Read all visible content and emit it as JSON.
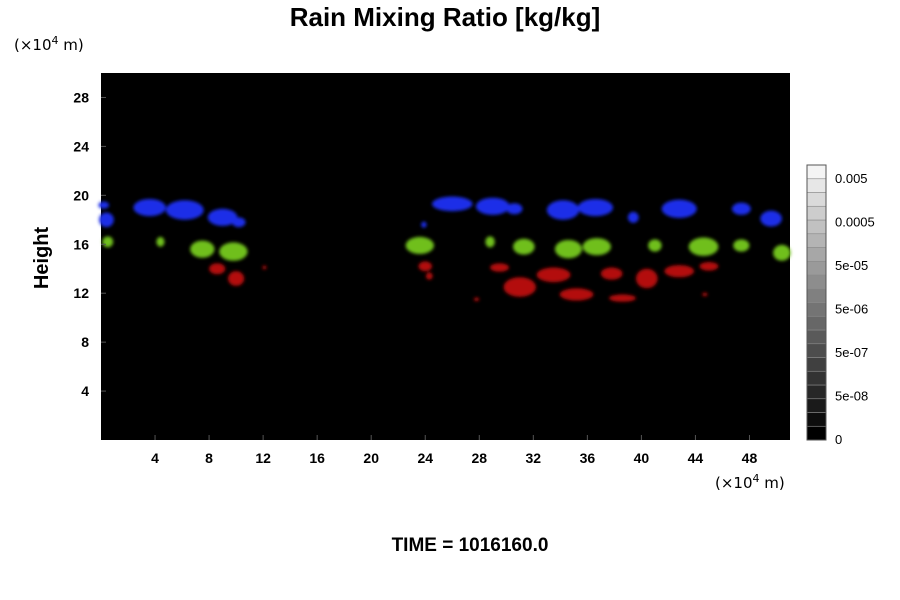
{
  "chart_data": {
    "type": "heatmap",
    "title": "Rain Mixing Ratio [kg/kg]",
    "xlabel": "",
    "ylabel": "Height",
    "x_unit_base": "(×10",
    "x_unit_exp": "4",
    "x_unit_suffix": " m)",
    "y_unit_base": "(×10",
    "y_unit_exp": "4",
    "y_unit_suffix": " m)",
    "xlim": [
      0,
      51
    ],
    "ylim": [
      0,
      30
    ],
    "x_ticks": [
      4,
      8,
      12,
      16,
      20,
      24,
      28,
      32,
      36,
      40,
      44,
      48
    ],
    "y_ticks": [
      4,
      8,
      12,
      16,
      20,
      24,
      28
    ],
    "background_color": "#000000",
    "colorbar": {
      "labels": [
        "0",
        "5e-08",
        "5e-07",
        "5e-06",
        "5e-05",
        "0.0005",
        "0.005"
      ],
      "levels": 20,
      "min_color": "#000000",
      "max_color": "#f4f4f4"
    },
    "layers": [
      {
        "color": "#1a2ee8",
        "blobs": [
          {
            "x": 0.4,
            "y": 18.0,
            "w": 1.1,
            "h": 1.2
          },
          {
            "x": 0.2,
            "y": 19.2,
            "w": 0.8,
            "h": 0.6
          },
          {
            "x": 3.6,
            "y": 19.0,
            "w": 2.4,
            "h": 1.4
          },
          {
            "x": 6.2,
            "y": 18.8,
            "w": 2.8,
            "h": 1.6
          },
          {
            "x": 9.0,
            "y": 18.2,
            "w": 2.2,
            "h": 1.4
          },
          {
            "x": 10.2,
            "y": 17.8,
            "w": 1.0,
            "h": 0.8
          },
          {
            "x": 23.9,
            "y": 17.6,
            "w": 0.4,
            "h": 0.5
          },
          {
            "x": 26.0,
            "y": 19.3,
            "w": 3.0,
            "h": 1.2
          },
          {
            "x": 29.0,
            "y": 19.1,
            "w": 2.5,
            "h": 1.4
          },
          {
            "x": 30.6,
            "y": 18.9,
            "w": 1.2,
            "h": 0.9
          },
          {
            "x": 34.2,
            "y": 18.8,
            "w": 2.4,
            "h": 1.6
          },
          {
            "x": 36.6,
            "y": 19.0,
            "w": 2.6,
            "h": 1.4
          },
          {
            "x": 39.4,
            "y": 18.2,
            "w": 0.8,
            "h": 0.9
          },
          {
            "x": 42.8,
            "y": 18.9,
            "w": 2.6,
            "h": 1.5
          },
          {
            "x": 47.4,
            "y": 18.9,
            "w": 1.4,
            "h": 1.0
          },
          {
            "x": 49.6,
            "y": 18.1,
            "w": 1.6,
            "h": 1.3
          }
        ]
      },
      {
        "color": "#6fbf1c",
        "blobs": [
          {
            "x": 0.5,
            "y": 16.2,
            "w": 0.8,
            "h": 0.9
          },
          {
            "x": 4.4,
            "y": 16.2,
            "w": 0.6,
            "h": 0.8
          },
          {
            "x": 7.5,
            "y": 15.6,
            "w": 1.8,
            "h": 1.4
          },
          {
            "x": 9.8,
            "y": 15.4,
            "w": 2.1,
            "h": 1.5
          },
          {
            "x": 23.6,
            "y": 15.9,
            "w": 2.1,
            "h": 1.4
          },
          {
            "x": 28.8,
            "y": 16.2,
            "w": 0.7,
            "h": 0.9
          },
          {
            "x": 31.3,
            "y": 15.8,
            "w": 1.6,
            "h": 1.3
          },
          {
            "x": 34.6,
            "y": 15.6,
            "w": 2.0,
            "h": 1.5
          },
          {
            "x": 36.7,
            "y": 15.8,
            "w": 2.1,
            "h": 1.4
          },
          {
            "x": 41.0,
            "y": 15.9,
            "w": 1.0,
            "h": 1.0
          },
          {
            "x": 44.6,
            "y": 15.8,
            "w": 2.2,
            "h": 1.5
          },
          {
            "x": 47.4,
            "y": 15.9,
            "w": 1.2,
            "h": 1.0
          },
          {
            "x": 50.4,
            "y": 15.3,
            "w": 1.3,
            "h": 1.3
          }
        ]
      },
      {
        "color": "#b30c0c",
        "blobs": [
          {
            "x": 8.6,
            "y": 14.0,
            "w": 1.2,
            "h": 0.9
          },
          {
            "x": 10.0,
            "y": 13.2,
            "w": 1.2,
            "h": 1.2
          },
          {
            "x": 12.1,
            "y": 14.1,
            "w": 0.3,
            "h": 0.3
          },
          {
            "x": 24.0,
            "y": 14.2,
            "w": 1.0,
            "h": 0.8
          },
          {
            "x": 24.3,
            "y": 13.4,
            "w": 0.5,
            "h": 0.6
          },
          {
            "x": 27.8,
            "y": 11.5,
            "w": 0.4,
            "h": 0.3
          },
          {
            "x": 29.5,
            "y": 14.1,
            "w": 1.4,
            "h": 0.7
          },
          {
            "x": 31.0,
            "y": 12.5,
            "w": 2.4,
            "h": 1.6
          },
          {
            "x": 33.5,
            "y": 13.5,
            "w": 2.5,
            "h": 1.2
          },
          {
            "x": 35.2,
            "y": 11.9,
            "w": 2.5,
            "h": 1.0
          },
          {
            "x": 37.8,
            "y": 13.6,
            "w": 1.6,
            "h": 1.0
          },
          {
            "x": 38.6,
            "y": 11.6,
            "w": 2.0,
            "h": 0.6
          },
          {
            "x": 40.4,
            "y": 13.2,
            "w": 1.6,
            "h": 1.6
          },
          {
            "x": 42.8,
            "y": 13.8,
            "w": 2.2,
            "h": 1.0
          },
          {
            "x": 45.0,
            "y": 14.2,
            "w": 1.4,
            "h": 0.7
          },
          {
            "x": 44.7,
            "y": 11.9,
            "w": 0.4,
            "h": 0.3
          }
        ]
      }
    ]
  },
  "footer": {
    "time_label": "TIME = 1016160.0"
  }
}
